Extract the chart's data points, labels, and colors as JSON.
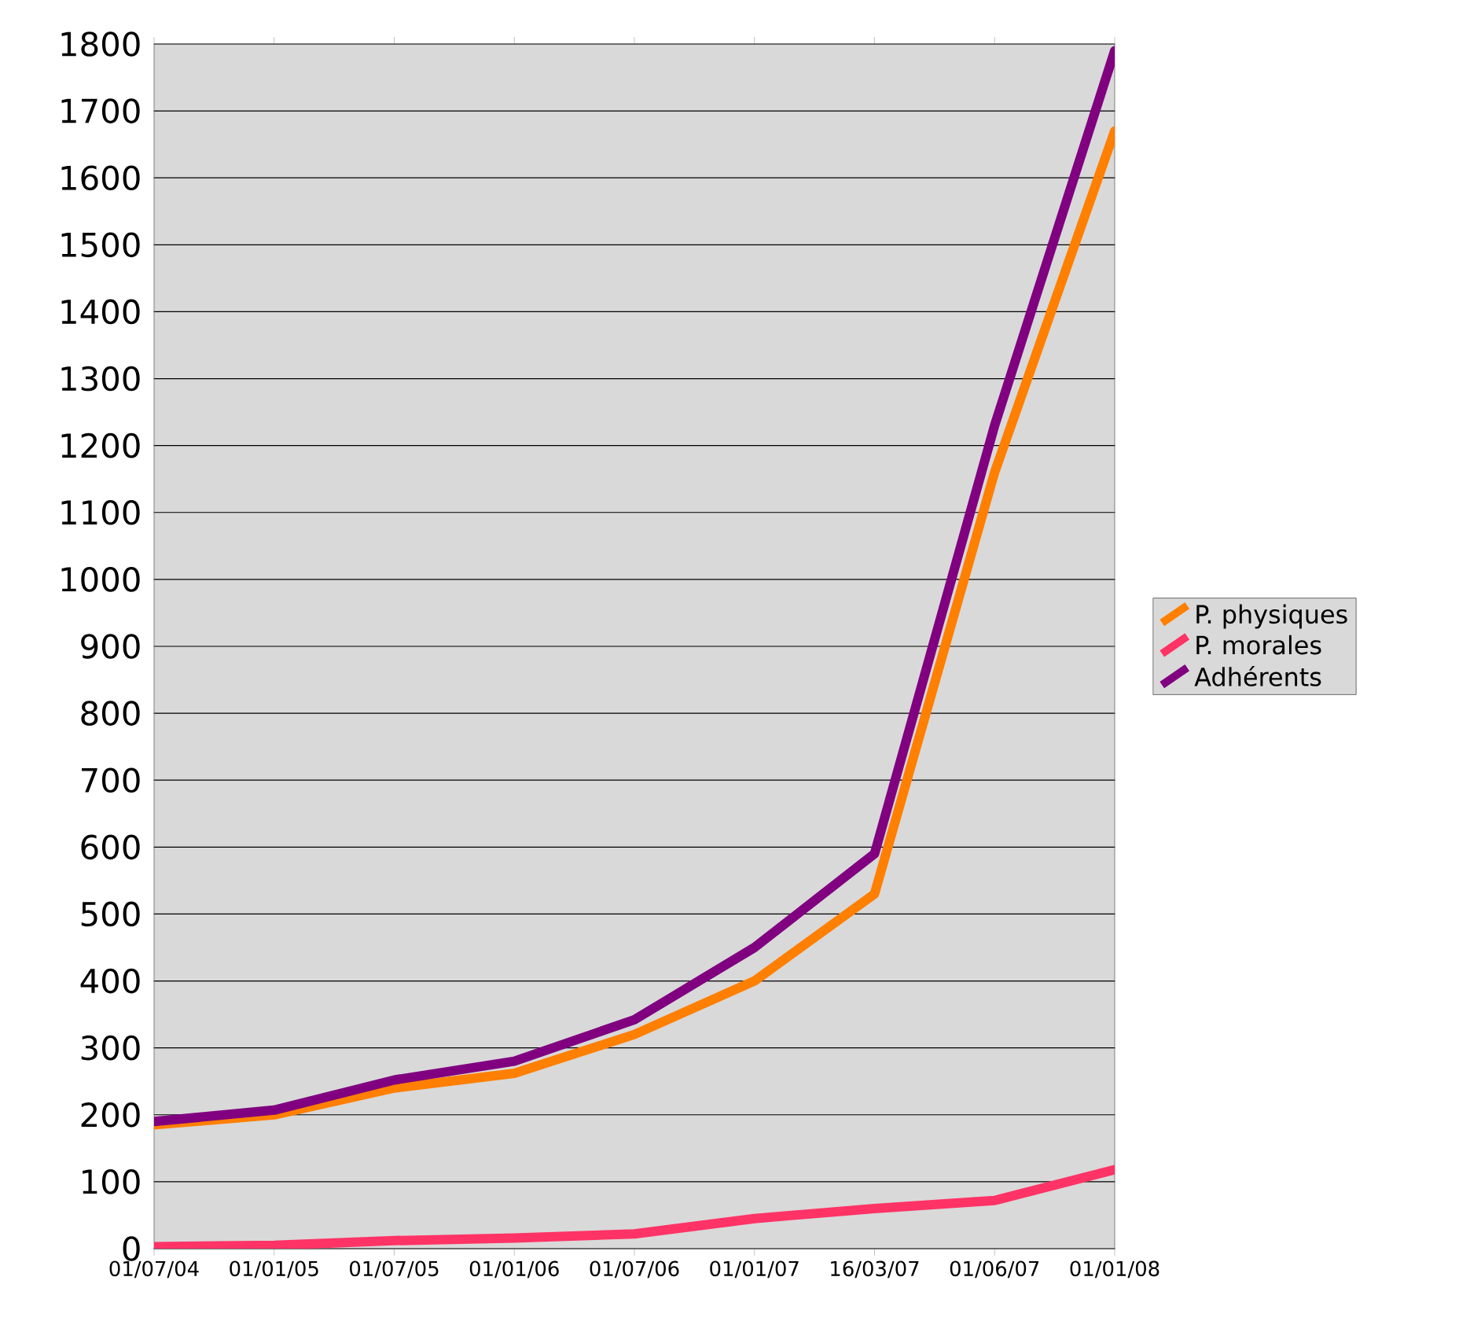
{
  "chart_data": {
    "type": "line",
    "categories": [
      "01/07/04",
      "01/01/05",
      "01/07/05",
      "01/01/06",
      "01/07/06",
      "01/01/07",
      "16/03/07",
      "01/06/07",
      "01/01/08"
    ],
    "series": [
      {
        "name": "P. physiques",
        "color": "#ff7f00",
        "values": [
          185,
          200,
          240,
          262,
          320,
          400,
          530,
          1160,
          1670
        ]
      },
      {
        "name": "P. morales",
        "color": "#ff3366",
        "values": [
          3,
          5,
          12,
          16,
          22,
          45,
          60,
          72,
          118
        ]
      },
      {
        "name": "Adhérents",
        "color": "#800080",
        "values": [
          190,
          207,
          252,
          280,
          342,
          450,
          590,
          1230,
          1790
        ]
      }
    ],
    "ylim": [
      0,
      1800
    ],
    "yticks": [
      0,
      100,
      200,
      300,
      400,
      500,
      600,
      700,
      800,
      900,
      1000,
      1100,
      1200,
      1300,
      1400,
      1500,
      1600,
      1700,
      1800
    ],
    "grid": "y",
    "legend": "right",
    "line_style": "solid",
    "marker": "none"
  }
}
